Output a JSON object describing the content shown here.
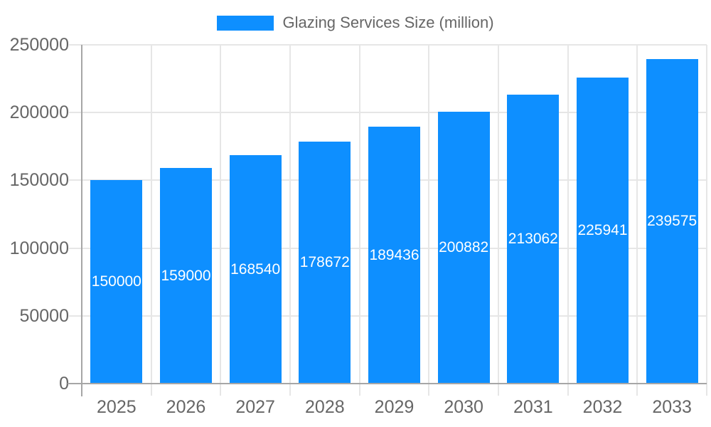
{
  "chart_data": {
    "type": "bar",
    "title": "Glazing Services Size (million)",
    "legend": {
      "label": "Glazing Services Size (million)",
      "position": "top"
    },
    "categories": [
      "2025",
      "2026",
      "2027",
      "2028",
      "2029",
      "2030",
      "2031",
      "2032",
      "2033"
    ],
    "series": [
      {
        "name": "Glazing Services Size (million)",
        "values": [
          150000,
          159000,
          168540,
          178672,
          189436,
          200882,
          213062,
          225941,
          239575
        ]
      }
    ],
    "bar_labels": [
      "150000",
      "159000",
      "168540",
      "178672",
      "189436",
      "200882",
      "213062",
      "225941",
      "239575"
    ],
    "xlabel": "",
    "ylabel": "",
    "ylim": [
      0,
      250000
    ],
    "yticks": [
      0,
      50000,
      100000,
      150000,
      200000,
      250000
    ],
    "ytick_labels": [
      "0",
      "50000",
      "100000",
      "150000",
      "200000",
      "250000"
    ],
    "grid": true,
    "colors": {
      "bar": "#0e8fff",
      "bar_label_text": "#ffffff",
      "grid": "#e6e6e6",
      "axis": "#a6a6a6",
      "tick_text": "#666666",
      "background": "#ffffff"
    }
  }
}
